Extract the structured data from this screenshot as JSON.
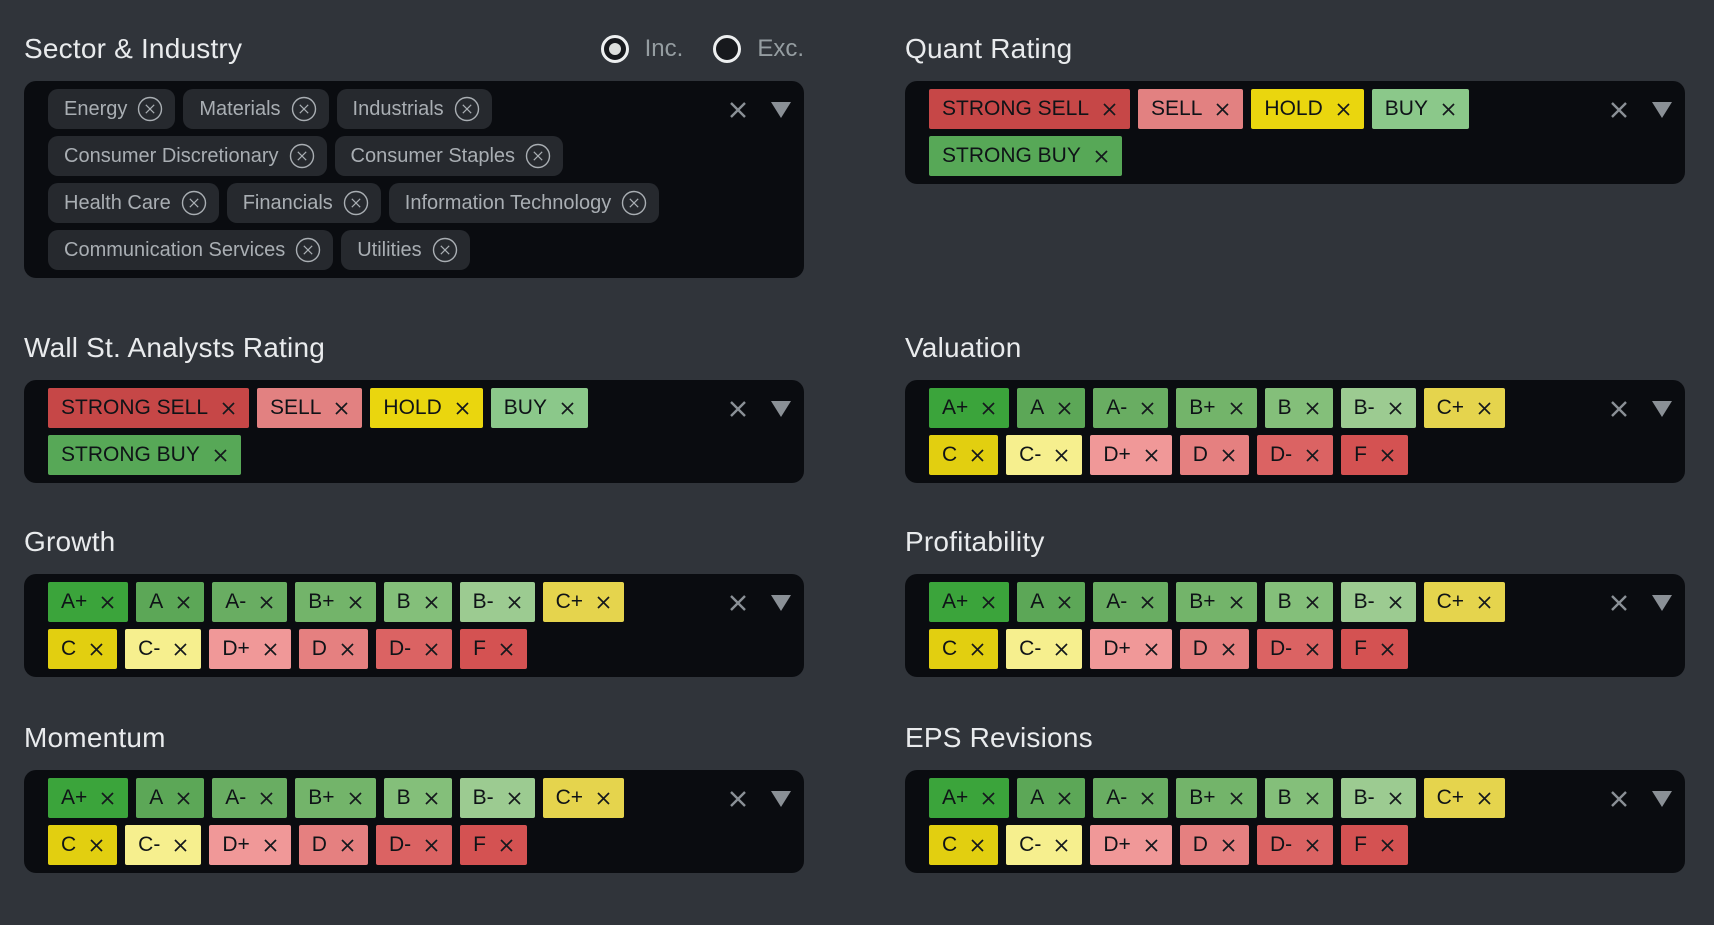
{
  "theme": {
    "page_background": "#30343a",
    "box_background": "#0a0c10",
    "title_color": "#e9ebed",
    "chip_background": "#26292e",
    "chip_text": "#a9aeb3",
    "tag_text": "#0f1317",
    "icon_gray": "#8a9096",
    "radio_label_color": "#959da1"
  },
  "panel": {
    "sections": [
      {
        "title": "Sector & Industry",
        "kind": "chips",
        "include_exclude": {
          "options": [
            {
              "label": "Inc.",
              "selected": true
            },
            {
              "label": "Exc.",
              "selected": false
            }
          ]
        },
        "rows": [
          [
            "Energy",
            "Materials",
            "Industrials"
          ],
          [
            "Consumer Discretionary",
            "Consumer Staples"
          ],
          [
            "Health Care",
            "Financials",
            "Information Technology"
          ],
          [
            "Communication Services",
            "Utilities"
          ]
        ]
      },
      {
        "title": "Quant Rating",
        "kind": "tags",
        "rows": [
          [
            {
              "label": "STRONG SELL",
              "color": "#c64747"
            },
            {
              "label": "SELL",
              "color": "#e28181"
            },
            {
              "label": "HOLD",
              "color": "#ead60e"
            },
            {
              "label": "BUY",
              "color": "#8bc88a"
            }
          ],
          [
            {
              "label": "STRONG BUY",
              "color": "#57a857"
            }
          ]
        ]
      },
      {
        "title": "Wall St. Analysts Rating",
        "kind": "tags",
        "rows": [
          [
            {
              "label": "STRONG SELL",
              "color": "#c64747"
            },
            {
              "label": "SELL",
              "color": "#e28181"
            },
            {
              "label": "HOLD",
              "color": "#ead60e"
            },
            {
              "label": "BUY",
              "color": "#8bc88a"
            }
          ],
          [
            {
              "label": "STRONG BUY",
              "color": "#57a857"
            }
          ]
        ]
      },
      {
        "title": "Valuation",
        "kind": "tags",
        "rows": [
          [
            {
              "label": "A+",
              "color": "#3ba43b"
            },
            {
              "label": "A",
              "color": "#5ca757"
            },
            {
              "label": "A-",
              "color": "#69ad62"
            },
            {
              "label": "B+",
              "color": "#73b46a"
            },
            {
              "label": "B",
              "color": "#84bf7a"
            },
            {
              "label": "B-",
              "color": "#9ccb91"
            },
            {
              "label": "C+",
              "color": "#e5d44d"
            }
          ],
          [
            {
              "label": "C",
              "color": "#e2cf10"
            },
            {
              "label": "C-",
              "color": "#f6ef8e"
            },
            {
              "label": "D+",
              "color": "#f09898"
            },
            {
              "label": "D",
              "color": "#e58080"
            },
            {
              "label": "D-",
              "color": "#db6363"
            },
            {
              "label": "F",
              "color": "#d45252"
            }
          ]
        ]
      },
      {
        "title": "Growth",
        "kind": "tags",
        "rows": [
          [
            {
              "label": "A+",
              "color": "#3ba43b"
            },
            {
              "label": "A",
              "color": "#5ca757"
            },
            {
              "label": "A-",
              "color": "#69ad62"
            },
            {
              "label": "B+",
              "color": "#73b46a"
            },
            {
              "label": "B",
              "color": "#84bf7a"
            },
            {
              "label": "B-",
              "color": "#9ccb91"
            },
            {
              "label": "C+",
              "color": "#e5d44d"
            }
          ],
          [
            {
              "label": "C",
              "color": "#e2cf10"
            },
            {
              "label": "C-",
              "color": "#f6ef8e"
            },
            {
              "label": "D+",
              "color": "#f09898"
            },
            {
              "label": "D",
              "color": "#e58080"
            },
            {
              "label": "D-",
              "color": "#db6363"
            },
            {
              "label": "F",
              "color": "#d45252"
            }
          ]
        ]
      },
      {
        "title": "Profitability",
        "kind": "tags",
        "rows": [
          [
            {
              "label": "A+",
              "color": "#3ba43b"
            },
            {
              "label": "A",
              "color": "#5ca757"
            },
            {
              "label": "A-",
              "color": "#69ad62"
            },
            {
              "label": "B+",
              "color": "#73b46a"
            },
            {
              "label": "B",
              "color": "#84bf7a"
            },
            {
              "label": "B-",
              "color": "#9ccb91"
            },
            {
              "label": "C+",
              "color": "#e5d44d"
            }
          ],
          [
            {
              "label": "C",
              "color": "#e2cf10"
            },
            {
              "label": "C-",
              "color": "#f6ef8e"
            },
            {
              "label": "D+",
              "color": "#f09898"
            },
            {
              "label": "D",
              "color": "#e58080"
            },
            {
              "label": "D-",
              "color": "#db6363"
            },
            {
              "label": "F",
              "color": "#d45252"
            }
          ]
        ]
      },
      {
        "title": "Momentum",
        "kind": "tags",
        "rows": [
          [
            {
              "label": "A+",
              "color": "#3ba43b"
            },
            {
              "label": "A",
              "color": "#5ca757"
            },
            {
              "label": "A-",
              "color": "#69ad62"
            },
            {
              "label": "B+",
              "color": "#73b46a"
            },
            {
              "label": "B",
              "color": "#84bf7a"
            },
            {
              "label": "B-",
              "color": "#9ccb91"
            },
            {
              "label": "C+",
              "color": "#e5d44d"
            }
          ],
          [
            {
              "label": "C",
              "color": "#e2cf10"
            },
            {
              "label": "C-",
              "color": "#f6ef8e"
            },
            {
              "label": "D+",
              "color": "#f09898"
            },
            {
              "label": "D",
              "color": "#e58080"
            },
            {
              "label": "D-",
              "color": "#db6363"
            },
            {
              "label": "F",
              "color": "#d45252"
            }
          ]
        ]
      },
      {
        "title": "EPS Revisions",
        "kind": "tags",
        "rows": [
          [
            {
              "label": "A+",
              "color": "#3ba43b"
            },
            {
              "label": "A",
              "color": "#5ca757"
            },
            {
              "label": "A-",
              "color": "#69ad62"
            },
            {
              "label": "B+",
              "color": "#73b46a"
            },
            {
              "label": "B",
              "color": "#84bf7a"
            },
            {
              "label": "B-",
              "color": "#9ccb91"
            },
            {
              "label": "C+",
              "color": "#e5d44d"
            }
          ],
          [
            {
              "label": "C",
              "color": "#e2cf10"
            },
            {
              "label": "C-",
              "color": "#f6ef8e"
            },
            {
              "label": "D+",
              "color": "#f09898"
            },
            {
              "label": "D",
              "color": "#e58080"
            },
            {
              "label": "D-",
              "color": "#db6363"
            },
            {
              "label": "F",
              "color": "#d45252"
            }
          ]
        ]
      }
    ]
  }
}
